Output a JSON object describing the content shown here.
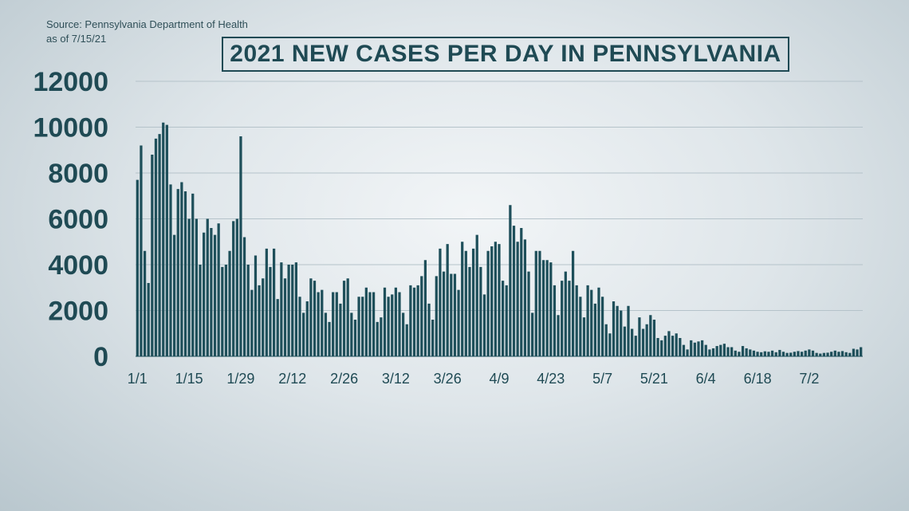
{
  "source": {
    "line1": "Source: Pennsylvania Department of Health",
    "line2": "as of 7/15/21"
  },
  "colors": {
    "bar": "#1e4f5a",
    "text": "#1f4a54",
    "grid": "#b5c3ca"
  },
  "chart_data": {
    "type": "bar",
    "title": "2021 NEW CASES PER DAY IN PENNSYLVANIA",
    "xlabel": "",
    "ylabel": "",
    "ylim": [
      0,
      12000
    ],
    "yticks": [
      0,
      2000,
      4000,
      6000,
      8000,
      10000,
      12000
    ],
    "grid": true,
    "legend": "none",
    "x_tick_labels": [
      {
        "label": "1/1",
        "day_index": 0
      },
      {
        "label": "1/15",
        "day_index": 14
      },
      {
        "label": "1/29",
        "day_index": 28
      },
      {
        "label": "2/12",
        "day_index": 42
      },
      {
        "label": "2/26",
        "day_index": 56
      },
      {
        "label": "3/12",
        "day_index": 70
      },
      {
        "label": "3/26",
        "day_index": 84
      },
      {
        "label": "4/9",
        "day_index": 98
      },
      {
        "label": "4/23",
        "day_index": 112
      },
      {
        "label": "5/7",
        "day_index": 126
      },
      {
        "label": "5/21",
        "day_index": 140
      },
      {
        "label": "6/4",
        "day_index": 154
      },
      {
        "label": "6/18",
        "day_index": 168
      },
      {
        "label": "7/2",
        "day_index": 182
      }
    ],
    "values": [
      7700,
      9200,
      4600,
      3200,
      8800,
      9500,
      9700,
      10200,
      10100,
      7500,
      5300,
      7300,
      7600,
      7200,
      6000,
      7100,
      6000,
      4000,
      5400,
      6000,
      5600,
      5300,
      5800,
      3900,
      4000,
      4600,
      5900,
      6000,
      9600,
      5200,
      4000,
      2900,
      4400,
      3100,
      3400,
      4700,
      3900,
      4700,
      2500,
      4100,
      3400,
      4000,
      4000,
      4100,
      2600,
      1900,
      2400,
      3400,
      3300,
      2800,
      2900,
      1900,
      1500,
      2800,
      2800,
      2300,
      3300,
      3400,
      1900,
      1600,
      2600,
      2600,
      3000,
      2800,
      2800,
      1500,
      1700,
      3000,
      2600,
      2700,
      3000,
      2800,
      1900,
      1400,
      3100,
      3000,
      3100,
      3500,
      4200,
      2300,
      1600,
      3500,
      4700,
      3700,
      4900,
      3600,
      3600,
      2900,
      5000,
      4600,
      3900,
      4700,
      5300,
      3900,
      2700,
      4600,
      4800,
      5000,
      4900,
      3300,
      3100,
      6600,
      5700,
      5000,
      5600,
      5100,
      3700,
      1900,
      4600,
      4600,
      4200,
      4200,
      4100,
      3100,
      1800,
      3300,
      3700,
      3300,
      4600,
      3100,
      2600,
      1700,
      3100,
      2900,
      2300,
      3000,
      2600,
      1400,
      1000,
      2400,
      2200,
      2000,
      1300,
      2200,
      1200,
      900,
      1700,
      1200,
      1400,
      1800,
      1600,
      800,
      700,
      900,
      1100,
      900,
      1000,
      800,
      500,
      300,
      700,
      600,
      650,
      700,
      500,
      300,
      350,
      450,
      500,
      550,
      400,
      400,
      250,
      200,
      450,
      350,
      300,
      250,
      200,
      180,
      220,
      200,
      250,
      180,
      280,
      200,
      150,
      160,
      200,
      230,
      200,
      250,
      300,
      250,
      150,
      120,
      150,
      160,
      200,
      250,
      200,
      230,
      180,
      150,
      330,
      300,
      400
    ]
  }
}
